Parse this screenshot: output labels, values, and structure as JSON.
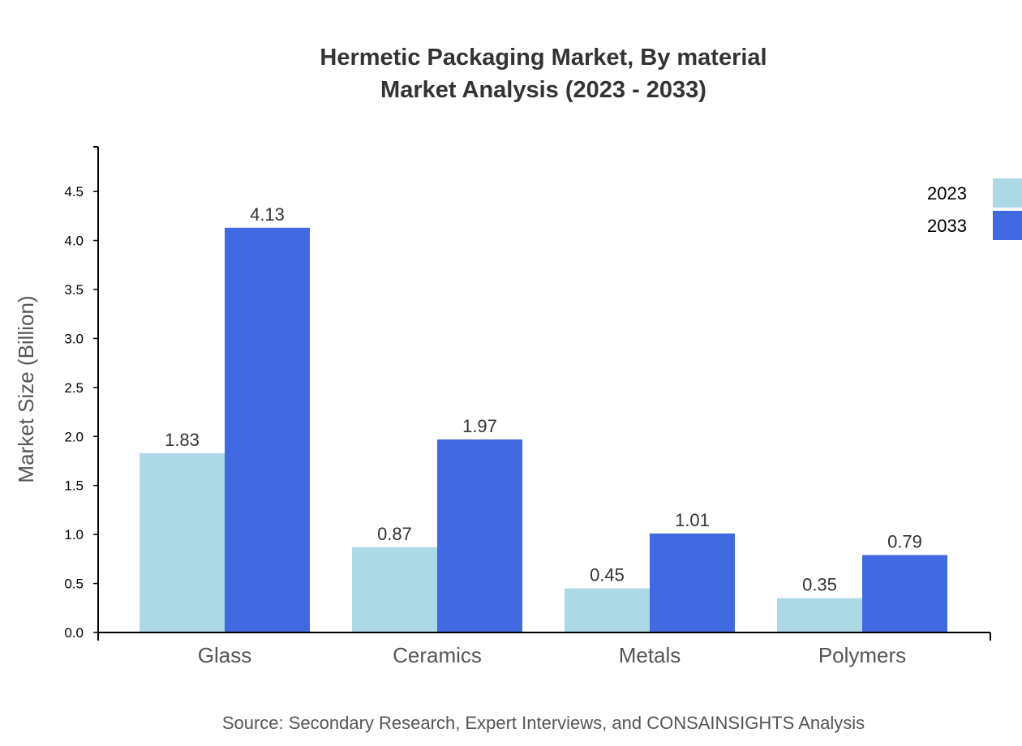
{
  "chart_data": {
    "type": "bar",
    "title": "Hermetic Packaging Market, By material",
    "subtitle": "Market Analysis (2023 - 2033)",
    "xlabel": "",
    "ylabel": "Market Size (Billion)",
    "categories": [
      "Glass",
      "Ceramics",
      "Metals",
      "Polymers"
    ],
    "series": [
      {
        "name": "2023",
        "values": [
          1.83,
          0.87,
          0.45,
          0.35
        ],
        "color": "#add8e6"
      },
      {
        "name": "2033",
        "values": [
          4.13,
          1.97,
          1.01,
          0.79
        ],
        "color": "#4169e1"
      }
    ],
    "value_labels": [
      [
        "1.83",
        "0.87",
        "0.45",
        "0.35"
      ],
      [
        "4.13",
        "1.97",
        "1.01",
        "0.79"
      ]
    ],
    "ylim": [
      0,
      4.956
    ],
    "yticks": [
      "0.0",
      "0.5",
      "1.0",
      "1.5",
      "2.0",
      "2.5",
      "3.0",
      "3.5",
      "4.0",
      "4.5"
    ],
    "grid": false,
    "legend_placement": "top-right"
  },
  "source": "Source: Secondary Research, Expert Interviews, and CONSAINSIGHTS Analysis"
}
